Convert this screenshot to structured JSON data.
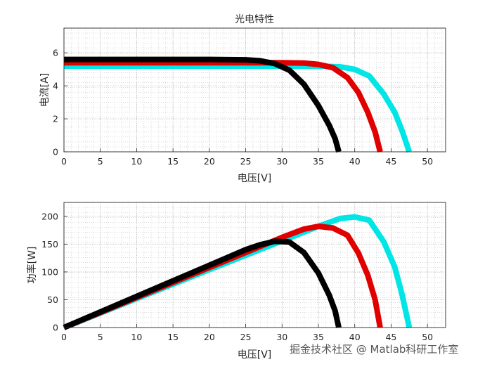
{
  "chart_data": [
    {
      "type": "line",
      "title": "光电特性",
      "xlabel": "电压[V]",
      "ylabel": "电流[A]",
      "xlim": [
        0,
        52.5
      ],
      "ylim": [
        0,
        7.5
      ],
      "xticks": [
        "0",
        "5",
        "10",
        "15",
        "20",
        "25",
        "30",
        "35",
        "40",
        "45",
        "50"
      ],
      "yticks": [
        "0",
        "2",
        "4",
        "6"
      ],
      "grid": true,
      "minor_grid": true,
      "series": [
        {
          "color": "#00e5e5",
          "x": [
            0,
            10,
            20,
            30,
            35,
            38,
            40,
            42,
            44,
            45.5,
            46.5,
            47.5
          ],
          "y": [
            5.2,
            5.2,
            5.2,
            5.2,
            5.2,
            5.15,
            5.0,
            4.6,
            3.5,
            2.4,
            1.3,
            0
          ]
        },
        {
          "color": "#e00000",
          "x": [
            0,
            10,
            20,
            30,
            33,
            35,
            37,
            39,
            40.5,
            41.8,
            42.8,
            43.5
          ],
          "y": [
            5.4,
            5.4,
            5.4,
            5.4,
            5.38,
            5.3,
            5.1,
            4.5,
            3.6,
            2.4,
            1.2,
            0
          ]
        },
        {
          "color": "#000000",
          "x": [
            0,
            10,
            20,
            25,
            27,
            29,
            31,
            33,
            35,
            36.5,
            37.3,
            37.8
          ],
          "y": [
            5.6,
            5.6,
            5.6,
            5.58,
            5.52,
            5.35,
            4.95,
            4.1,
            2.8,
            1.6,
            0.8,
            0
          ]
        }
      ]
    },
    {
      "type": "line",
      "title": "",
      "xlabel": "电压[V]",
      "ylabel": "功率[W]",
      "xlim": [
        0,
        52.5
      ],
      "ylim": [
        0,
        225
      ],
      "xticks": [
        "0",
        "5",
        "10",
        "15",
        "20",
        "25",
        "30",
        "35",
        "40",
        "45",
        "50"
      ],
      "yticks": [
        "0",
        "50",
        "100",
        "150",
        "200"
      ],
      "grid": true,
      "minor_grid": true,
      "series": [
        {
          "color": "#00e5e5",
          "x": [
            0,
            10,
            20,
            30,
            35,
            38,
            40,
            42,
            44,
            45.5,
            46.5,
            47.5
          ],
          "y": [
            0,
            52,
            104,
            156,
            182,
            196,
            199,
            193,
            154,
            109,
            60,
            0
          ]
        },
        {
          "color": "#e00000",
          "x": [
            0,
            10,
            20,
            30,
            33,
            35,
            37,
            39,
            40.5,
            41.8,
            42.8,
            43.5
          ],
          "y": [
            0,
            54,
            108,
            162,
            177,
            182,
            179,
            166,
            134,
            94,
            50,
            0
          ]
        },
        {
          "color": "#000000",
          "x": [
            0,
            10,
            20,
            25,
            27,
            29,
            31,
            33,
            35,
            36.5,
            37.3,
            37.8
          ],
          "y": [
            0,
            56,
            112,
            140,
            149,
            155,
            154,
            135,
            98,
            58,
            30,
            0
          ]
        }
      ]
    }
  ],
  "watermark": "掘金技术社区 @ Matlab科研工作室"
}
